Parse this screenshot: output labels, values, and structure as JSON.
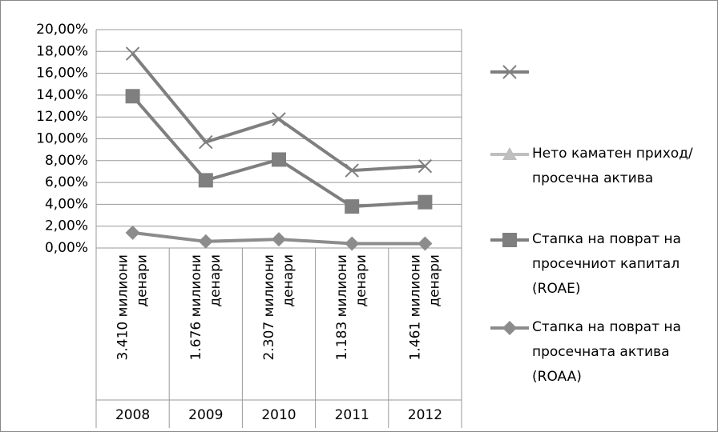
{
  "chart_data": {
    "type": "line",
    "categories": [
      "2008",
      "2009",
      "2010",
      "2011",
      "2012"
    ],
    "category_sublabels": [
      [
        "3.410 милиони",
        "денари"
      ],
      [
        "1.676 милиони",
        "денари"
      ],
      [
        "2.307 милиони",
        "денари"
      ],
      [
        "1.183 милиони",
        "денари"
      ],
      [
        "1.461 милиони",
        "денари"
      ]
    ],
    "series": [
      {
        "marker": "x",
        "color": "#7f7f7f",
        "values": [
          17.8,
          9.7,
          11.8,
          7.1,
          7.5
        ]
      },
      {
        "name": "Нето каматен приход/просечна актива",
        "marker": "triangle",
        "color": "#bfbfbf",
        "values": [
          null,
          null,
          null,
          null,
          null
        ]
      },
      {
        "name": "Стапка на поврат на просечниот капитал (ROAE)",
        "marker": "square",
        "color": "#7f7f7f",
        "values": [
          13.9,
          6.2,
          8.1,
          3.8,
          4.2
        ]
      },
      {
        "name": "Стапка на поврат на просечната актива (ROAA)",
        "marker": "diamond",
        "color": "#8c8c8c",
        "values": [
          1.4,
          0.6,
          0.8,
          0.4,
          0.4
        ]
      }
    ],
    "ylim": [
      0,
      20
    ],
    "yticks": [
      {
        "value": 0,
        "label": "0,00%"
      },
      {
        "value": 2,
        "label": "2,00%"
      },
      {
        "value": 4,
        "label": "4,00%"
      },
      {
        "value": 6,
        "label": "6,00%"
      },
      {
        "value": 8,
        "label": "8,00%"
      },
      {
        "value": 10,
        "label": "10,00%"
      },
      {
        "value": 12,
        "label": "12,00%"
      },
      {
        "value": 14,
        "label": "14,00%"
      },
      {
        "value": 16,
        "label": "16,00%"
      },
      {
        "value": 18,
        "label": "18,00%"
      },
      {
        "value": 20,
        "label": "20,00%"
      }
    ],
    "grid": true,
    "legend": "right"
  }
}
